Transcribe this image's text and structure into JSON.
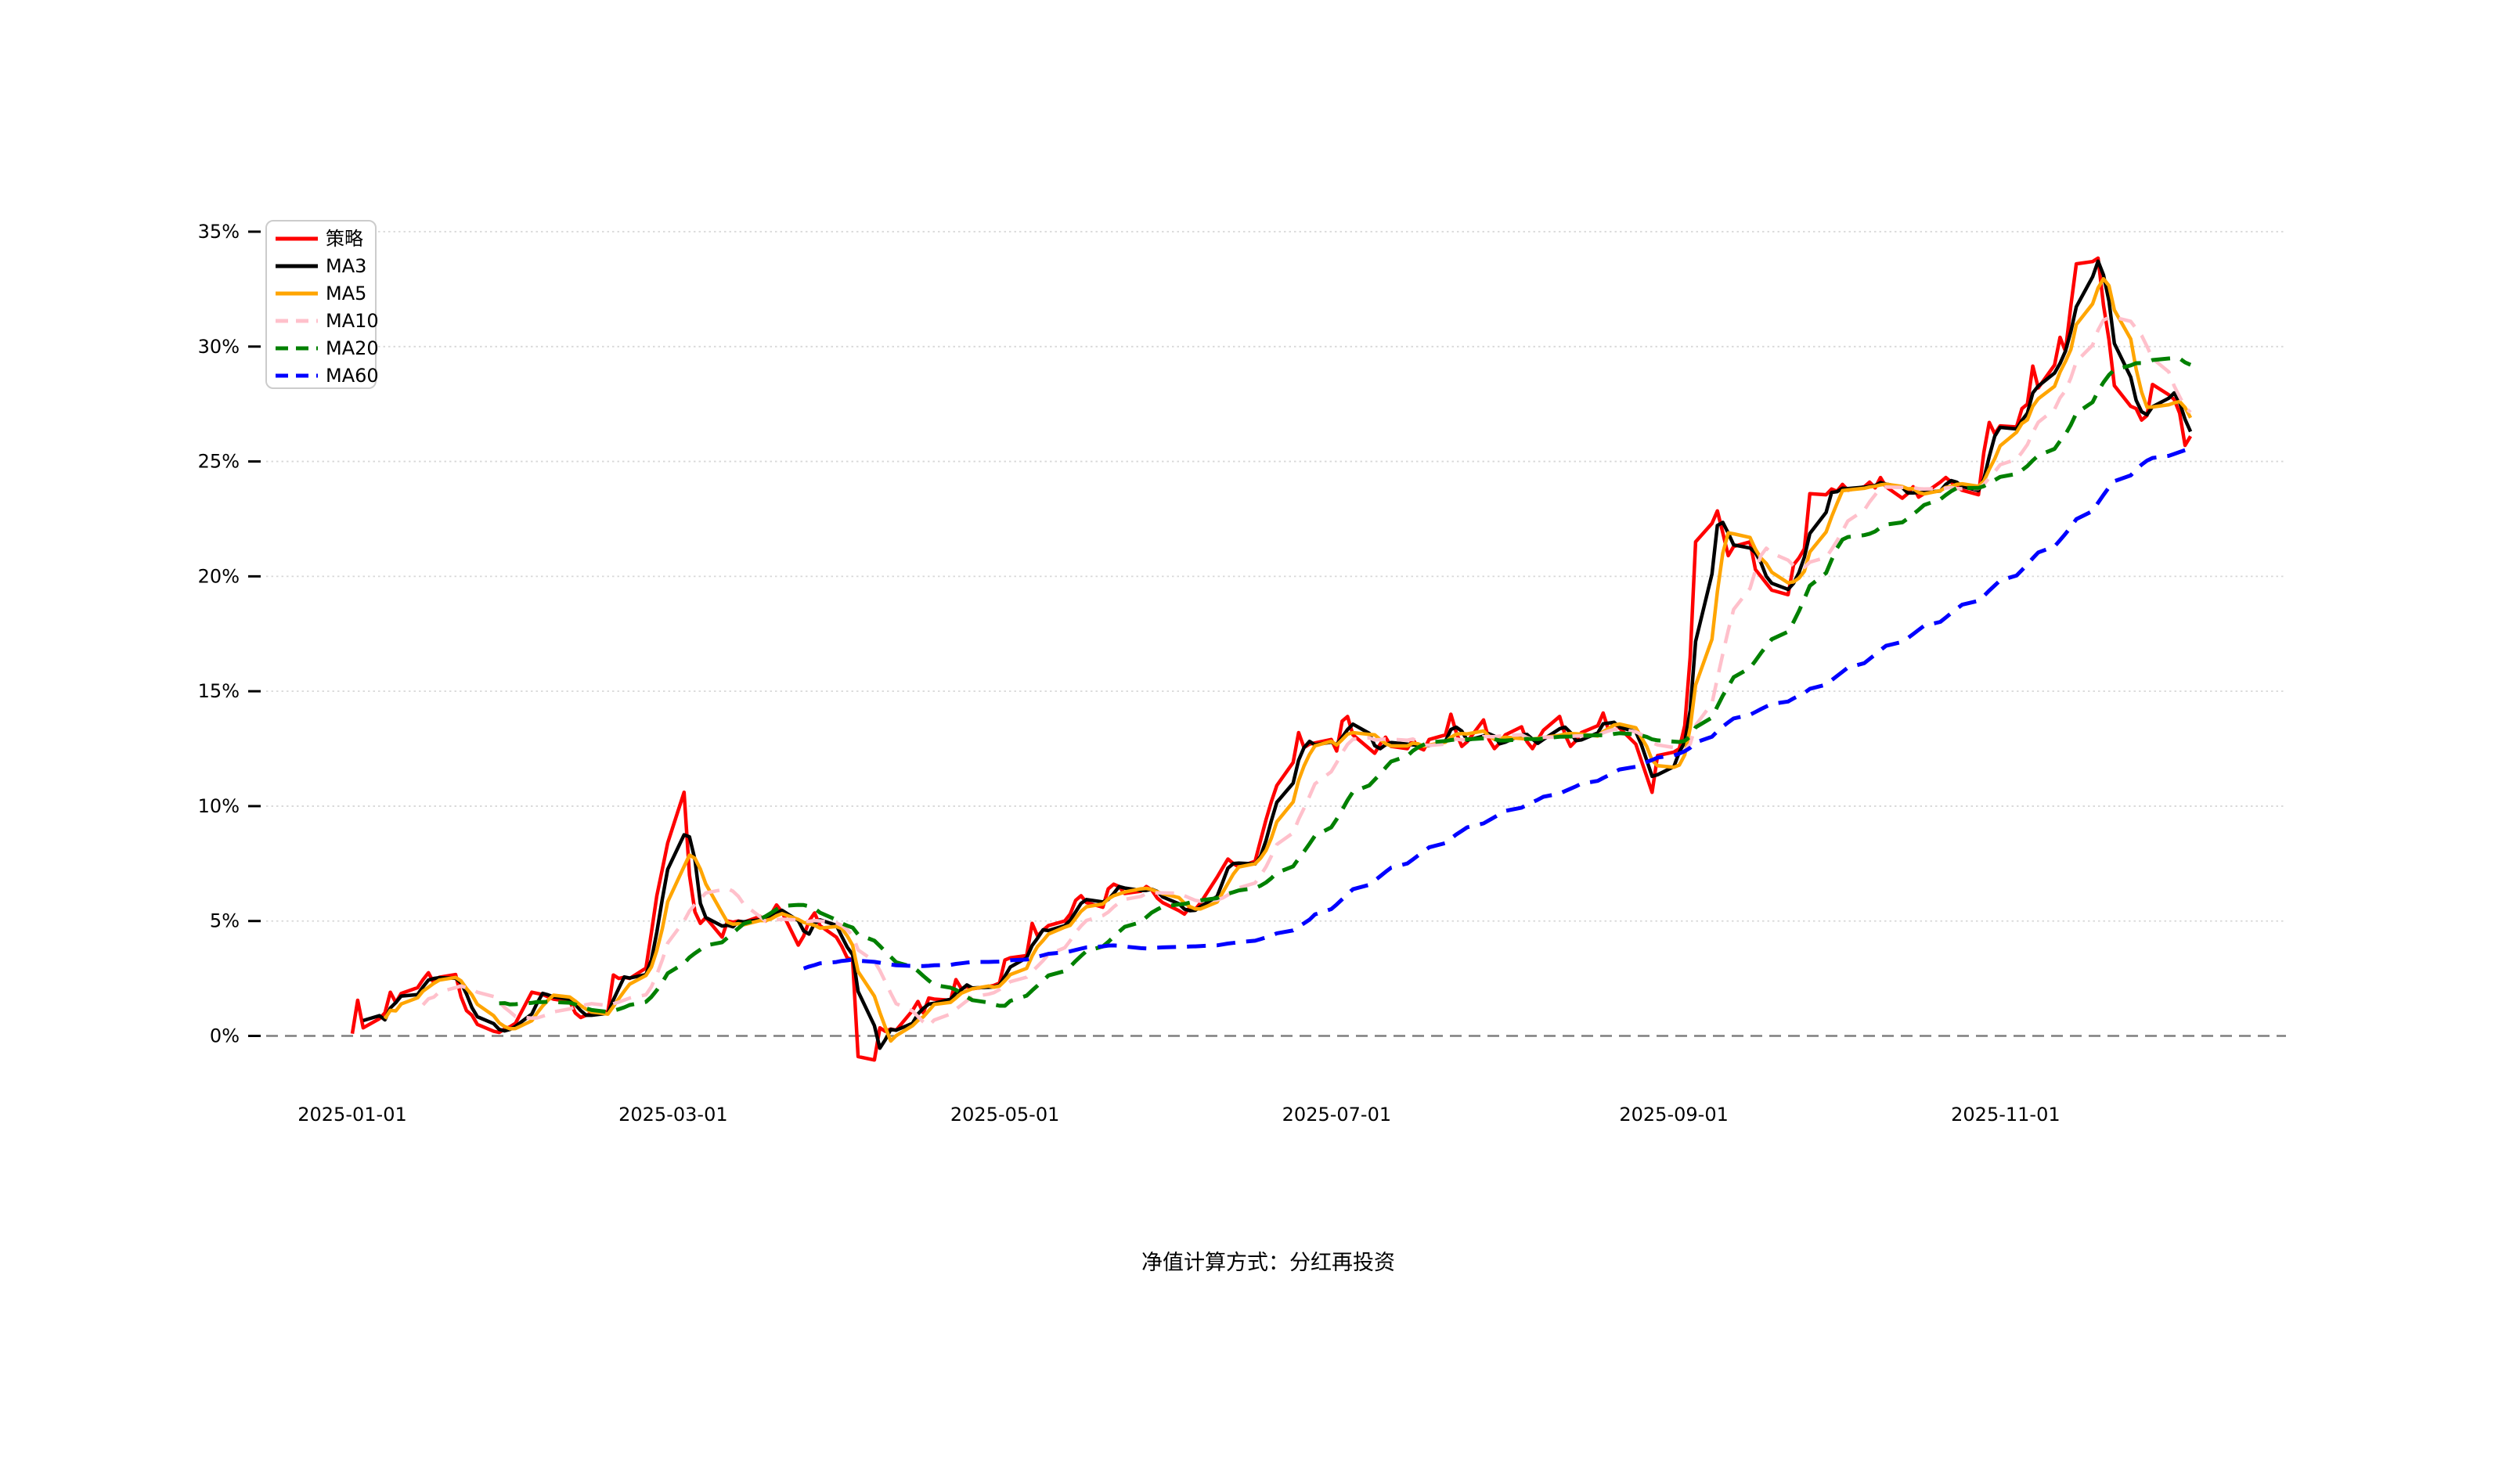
{
  "caption": "净值计算方式：分红再投资",
  "chart_data": {
    "type": "line",
    "title": "",
    "xlabel": "",
    "ylabel": "",
    "grid": true,
    "legend_position": "upper-left",
    "x_axis": {
      "tick_labels": [
        "2025-01-01",
        "2025-03-01",
        "2025-05-01",
        "2025-07-01",
        "2025-09-01",
        "2025-11-01"
      ],
      "range": [
        "2024-12-17",
        "2025-12-22"
      ]
    },
    "y_axis": {
      "tick_labels": [
        "0%",
        "5%",
        "10%",
        "15%",
        "20%",
        "25%",
        "30%",
        "35%"
      ],
      "tick_values": [
        0,
        5,
        10,
        15,
        20,
        25,
        30,
        35
      ],
      "range": [
        -3.3,
        35.45
      ],
      "unit": "%"
    },
    "zero_line": {
      "value": 0,
      "color": "#7f7f7f",
      "style": "dashed"
    },
    "series": [
      {
        "name": "策略",
        "color": "#ff0000",
        "style": "solid",
        "source": "strategy"
      },
      {
        "name": "MA3",
        "color": "#000000",
        "style": "solid",
        "derived": "rolling_mean_of_strategy",
        "window": 3
      },
      {
        "name": "MA5",
        "color": "#ffa500",
        "style": "solid",
        "derived": "rolling_mean_of_strategy",
        "window": 5
      },
      {
        "name": "MA10",
        "color": "#ffc0cb",
        "style": "dashed",
        "derived": "rolling_mean_of_strategy",
        "window": 10
      },
      {
        "name": "MA20",
        "color": "#008000",
        "style": "dashed",
        "derived": "rolling_mean_of_strategy",
        "window": 20
      },
      {
        "name": "MA60",
        "color": "#0000ff",
        "style": "dashed",
        "derived": "rolling_mean_of_strategy",
        "window": 60
      }
    ],
    "strategy_points": {
      "dates": [
        "2025-01-01",
        "2025-01-02",
        "2025-01-03",
        "2025-01-06",
        "2025-01-07",
        "2025-01-08",
        "2025-01-09",
        "2025-01-10",
        "2025-01-13",
        "2025-01-14",
        "2025-01-15",
        "2025-01-16",
        "2025-01-17",
        "2025-01-20",
        "2025-01-21",
        "2025-01-22",
        "2025-01-23",
        "2025-01-24",
        "2025-01-27",
        "2025-01-28",
        "2025-01-29",
        "2025-01-30",
        "2025-01-31",
        "2025-02-03",
        "2025-02-04",
        "2025-02-05",
        "2025-02-06",
        "2025-02-07",
        "2025-02-10",
        "2025-02-11",
        "2025-02-12",
        "2025-02-13",
        "2025-02-14",
        "2025-02-17",
        "2025-02-18",
        "2025-02-19",
        "2025-02-20",
        "2025-02-21",
        "2025-02-24",
        "2025-02-25",
        "2025-02-26",
        "2025-02-27",
        "2025-02-28",
        "2025-03-03",
        "2025-03-04",
        "2025-03-05",
        "2025-03-06",
        "2025-03-07",
        "2025-03-10",
        "2025-03-11",
        "2025-03-12",
        "2025-03-13",
        "2025-03-14",
        "2025-03-17",
        "2025-03-18",
        "2025-03-19",
        "2025-03-20",
        "2025-03-21",
        "2025-03-24",
        "2025-03-25",
        "2025-03-26",
        "2025-03-27",
        "2025-03-28",
        "2025-03-31",
        "2025-04-01",
        "2025-04-02",
        "2025-04-03",
        "2025-04-04",
        "2025-04-07",
        "2025-04-08",
        "2025-04-09",
        "2025-04-10",
        "2025-04-11",
        "2025-04-14",
        "2025-04-15",
        "2025-04-16",
        "2025-04-17",
        "2025-04-18",
        "2025-04-21",
        "2025-04-22",
        "2025-04-23",
        "2025-04-24",
        "2025-04-25",
        "2025-04-28",
        "2025-04-29",
        "2025-04-30",
        "2025-05-01",
        "2025-05-02",
        "2025-05-05",
        "2025-05-06",
        "2025-05-07",
        "2025-05-08",
        "2025-05-09",
        "2025-05-12",
        "2025-05-13",
        "2025-05-14",
        "2025-05-15",
        "2025-05-16",
        "2025-05-19",
        "2025-05-20",
        "2025-05-21",
        "2025-05-22",
        "2025-05-23",
        "2025-05-26",
        "2025-05-27",
        "2025-05-28",
        "2025-05-29",
        "2025-05-30",
        "2025-06-02",
        "2025-06-03",
        "2025-06-04",
        "2025-06-05",
        "2025-06-06",
        "2025-06-09",
        "2025-06-10",
        "2025-06-11",
        "2025-06-12",
        "2025-06-13",
        "2025-06-16",
        "2025-06-17",
        "2025-06-18",
        "2025-06-19",
        "2025-06-20",
        "2025-06-23",
        "2025-06-24",
        "2025-06-25",
        "2025-06-26",
        "2025-06-27",
        "2025-06-30",
        "2025-07-01",
        "2025-07-02",
        "2025-07-03",
        "2025-07-04",
        "2025-07-07",
        "2025-07-08",
        "2025-07-09",
        "2025-07-10",
        "2025-07-11",
        "2025-07-14",
        "2025-07-15",
        "2025-07-16",
        "2025-07-17",
        "2025-07-18",
        "2025-07-21",
        "2025-07-22",
        "2025-07-23",
        "2025-07-24",
        "2025-07-25",
        "2025-07-28",
        "2025-07-29",
        "2025-07-30",
        "2025-07-31",
        "2025-08-01",
        "2025-08-04",
        "2025-08-05",
        "2025-08-06",
        "2025-08-07",
        "2025-08-08",
        "2025-08-11",
        "2025-08-12",
        "2025-08-13",
        "2025-08-14",
        "2025-08-15",
        "2025-08-18",
        "2025-08-19",
        "2025-08-20",
        "2025-08-21",
        "2025-08-22",
        "2025-08-25",
        "2025-08-26",
        "2025-08-27",
        "2025-08-28",
        "2025-08-29",
        "2025-09-01",
        "2025-09-02",
        "2025-09-03",
        "2025-09-04",
        "2025-09-05",
        "2025-09-08",
        "2025-09-09",
        "2025-09-10",
        "2025-09-11",
        "2025-09-12",
        "2025-09-15",
        "2025-09-16",
        "2025-09-17",
        "2025-09-18",
        "2025-09-19",
        "2025-09-22",
        "2025-09-23",
        "2025-09-24",
        "2025-09-25",
        "2025-09-26",
        "2025-09-29",
        "2025-09-30",
        "2025-10-01",
        "2025-10-02",
        "2025-10-03",
        "2025-10-06",
        "2025-10-07",
        "2025-10-08",
        "2025-10-09",
        "2025-10-10",
        "2025-10-13",
        "2025-10-14",
        "2025-10-15",
        "2025-10-16",
        "2025-10-17",
        "2025-10-20",
        "2025-10-21",
        "2025-10-22",
        "2025-10-23",
        "2025-10-24",
        "2025-10-27",
        "2025-10-28",
        "2025-10-29",
        "2025-10-30",
        "2025-10-31",
        "2025-11-03",
        "2025-11-04",
        "2025-11-05",
        "2025-11-06",
        "2025-11-07",
        "2025-11-10",
        "2025-11-11",
        "2025-11-12",
        "2025-11-13",
        "2025-11-14",
        "2025-11-17",
        "2025-11-18",
        "2025-11-19",
        "2025-11-20",
        "2025-11-21",
        "2025-11-24",
        "2025-11-25",
        "2025-11-26",
        "2025-11-27",
        "2025-11-28",
        "2025-12-01",
        "2025-12-02",
        "2025-12-03",
        "2025-12-04",
        "2025-12-05"
      ],
      "values_pct": [
        0.1,
        1.55,
        0.35,
        0.75,
        1.0,
        1.9,
        1.45,
        1.85,
        2.1,
        2.45,
        2.75,
        2.3,
        2.55,
        2.67,
        1.7,
        1.1,
        0.9,
        0.5,
        0.2,
        0.15,
        0.3,
        0.4,
        0.55,
        1.9,
        1.85,
        1.8,
        1.7,
        1.6,
        1.5,
        1.0,
        0.8,
        0.9,
        1.0,
        1.05,
        2.65,
        2.5,
        2.55,
        2.5,
        2.95,
        4.5,
        6.1,
        7.25,
        8.4,
        10.6,
        7.0,
        5.4,
        4.9,
        5.15,
        4.3,
        5.0,
        4.95,
        5.0,
        4.95,
        5.2,
        5.0,
        5.3,
        5.7,
        5.4,
        3.95,
        4.35,
        5.0,
        5.35,
        4.8,
        4.3,
        3.9,
        3.4,
        3.3,
        -0.9,
        -1.05,
        0.35,
        0.2,
        0.3,
        0.25,
        1.1,
        1.5,
        1.0,
        1.65,
        1.6,
        1.55,
        2.45,
        2.05,
        2.15,
        2.05,
        2.15,
        2.2,
        2.3,
        3.3,
        3.4,
        3.5,
        4.9,
        4.35,
        4.6,
        4.8,
        5.0,
        5.3,
        5.9,
        6.1,
        5.8,
        5.6,
        6.4,
        6.6,
        6.5,
        6.2,
        6.3,
        6.5,
        6.35,
        6.0,
        5.8,
        5.45,
        5.3,
        5.6,
        5.5,
        5.8,
        6.9,
        7.3,
        7.7,
        7.5,
        7.35,
        7.6,
        8.5,
        9.4,
        10.2,
        10.9,
        11.9,
        13.2,
        12.55,
        12.7,
        12.75,
        12.9,
        12.4,
        13.7,
        13.9,
        13.1,
        12.5,
        12.3,
        12.7,
        13.0,
        12.6,
        12.5,
        12.9,
        12.55,
        12.45,
        12.9,
        13.1,
        14.0,
        13.2,
        12.6,
        12.8,
        13.75,
        12.9,
        12.5,
        12.75,
        13.1,
        13.45,
        12.8,
        12.5,
        12.9,
        13.3,
        13.9,
        13.1,
        12.6,
        12.85,
        13.2,
        13.5,
        14.05,
        13.3,
        13.6,
        13.4,
        12.7,
        12.0,
        11.3,
        10.6,
        12.2,
        12.35,
        12.5,
        13.5,
        16.5,
        21.5,
        22.3,
        22.85,
        21.9,
        20.9,
        21.3,
        21.5,
        20.3,
        20.0,
        19.7,
        19.4,
        19.2,
        20.5,
        20.8,
        21.2,
        23.6,
        23.55,
        23.8,
        23.7,
        24.0,
        23.75,
        23.9,
        24.1,
        23.85,
        24.3,
        23.9,
        23.4,
        23.6,
        23.9,
        23.45,
        23.6,
        24.1,
        24.3,
        24.1,
        23.9,
        23.75,
        23.55,
        25.4,
        26.7,
        26.2,
        26.55,
        26.5,
        27.3,
        27.5,
        29.15,
        28.2,
        29.2,
        30.4,
        29.8,
        31.8,
        33.6,
        33.7,
        33.85,
        31.8,
        30.3,
        28.3,
        27.4,
        27.3,
        26.8,
        27.0,
        28.35,
        27.9,
        27.7,
        27.1,
        25.7,
        26.1
      ]
    }
  }
}
